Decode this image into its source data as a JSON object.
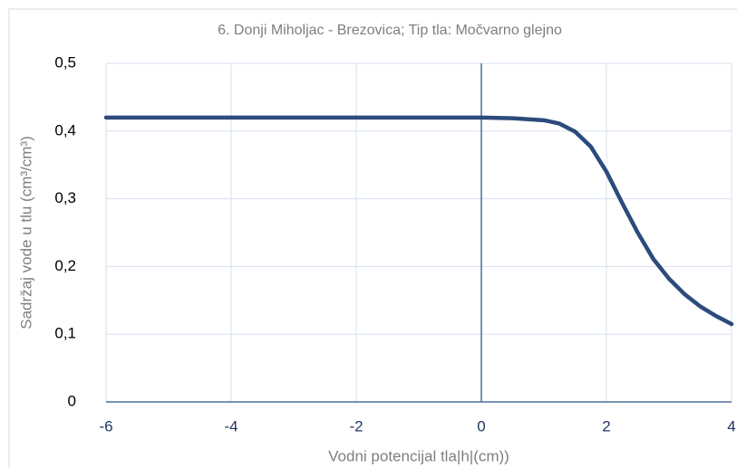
{
  "chart_data": {
    "type": "line",
    "title": "6. Donji Miholjac - Brezovica; Tip tla: Močvarno glejno",
    "x_label": "Vodni potencijal tla|h|(cm))",
    "y_label": "Sadržaj vode u tlu  (cm³/cm³)",
    "x": [
      -6,
      -4,
      -2,
      0,
      0.5,
      1,
      1.25,
      1.5,
      1.75,
      2,
      2.25,
      2.5,
      2.75,
      3,
      3.25,
      3.5,
      3.75,
      4
    ],
    "series": [
      {
        "color": "#2c4a7c",
        "values": [
          0.42,
          0.42,
          0.42,
          0.42,
          0.419,
          0.416,
          0.411,
          0.399,
          0.377,
          0.34,
          0.294,
          0.25,
          0.211,
          0.182,
          0.159,
          0.141,
          0.127,
          0.115
        ]
      }
    ],
    "xlim": [
      -6,
      4
    ],
    "xticks": [
      -6,
      -4,
      -2,
      0,
      2,
      4
    ],
    "ylim": [
      0,
      0.5
    ],
    "yticks": [
      0,
      {
        "value": 0.1,
        "label": "0,1"
      },
      {
        "value": 0.2,
        "label": "0,2"
      },
      {
        "value": 0.3,
        "label": "0,3"
      },
      {
        "value": 0.4,
        "label": "0,4"
      },
      {
        "value": 0.5,
        "label": "0,5"
      }
    ],
    "grid": true
  }
}
